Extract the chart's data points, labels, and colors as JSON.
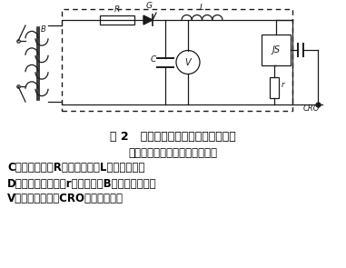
{
  "title_line1": "图 2   标准冲击电流检测法的原理接线",
  "title_line2": "（虚线框内为冲击电流发生器）",
  "legend_line1": "C－充电电容；R－充电电阵；L－阻尼电感；",
  "legend_line2": "D－整流硅二极管；r－分流器；B－试验变压器；",
  "legend_line3": "V－静电电压表；CRO－高压示波器",
  "bg_color": "#ffffff",
  "text_color": "#000000",
  "cc": "#1a1a1a"
}
